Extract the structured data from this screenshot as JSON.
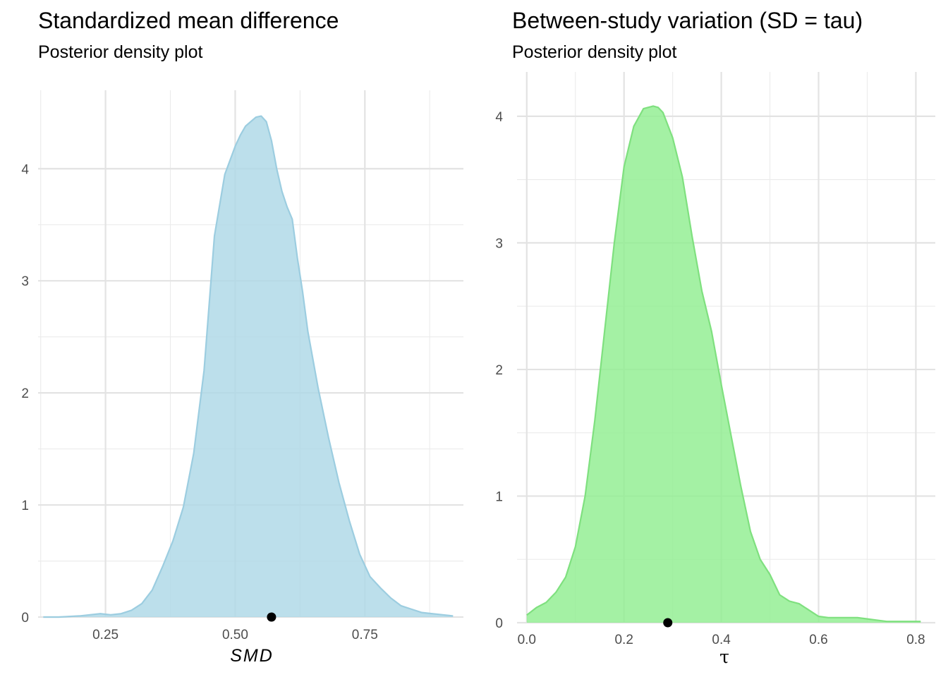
{
  "chart_data": [
    {
      "type": "area",
      "title": "Standardized mean difference",
      "subtitle": "Posterior density plot",
      "xlabel": "SMD",
      "ylabel": "",
      "xlim": [
        0.12,
        0.94
      ],
      "ylim": [
        0,
        4.7
      ],
      "x_ticks": [
        0.25,
        0.5,
        0.75
      ],
      "x_tick_labels": [
        "0.25",
        "0.50",
        "0.75"
      ],
      "x_minor": [
        0.125,
        0.375,
        0.625,
        0.875
      ],
      "y_ticks": [
        0,
        1,
        2,
        3,
        4
      ],
      "y_minor": [
        0.5,
        1.5,
        2.5,
        3.5
      ],
      "fill_color": "#ADD8E6",
      "line_color": "#9CCDE0",
      "grid": true,
      "point": {
        "x": 0.57,
        "y": 0
      },
      "x": [
        0.13,
        0.16,
        0.2,
        0.22,
        0.24,
        0.26,
        0.28,
        0.3,
        0.32,
        0.34,
        0.36,
        0.38,
        0.4,
        0.42,
        0.44,
        0.45,
        0.46,
        0.48,
        0.5,
        0.51,
        0.52,
        0.53,
        0.54,
        0.55,
        0.56,
        0.57,
        0.58,
        0.59,
        0.6,
        0.61,
        0.62,
        0.63,
        0.64,
        0.66,
        0.68,
        0.7,
        0.72,
        0.74,
        0.76,
        0.78,
        0.8,
        0.82,
        0.84,
        0.86,
        0.88,
        0.9,
        0.92
      ],
      "y": [
        0,
        0,
        0.01,
        0.02,
        0.03,
        0.02,
        0.03,
        0.06,
        0.12,
        0.24,
        0.45,
        0.68,
        0.98,
        1.46,
        2.2,
        2.8,
        3.4,
        3.95,
        4.2,
        4.3,
        4.38,
        4.42,
        4.46,
        4.47,
        4.42,
        4.25,
        4.0,
        3.8,
        3.66,
        3.55,
        3.2,
        2.9,
        2.55,
        2.04,
        1.6,
        1.2,
        0.86,
        0.56,
        0.36,
        0.26,
        0.17,
        0.1,
        0.07,
        0.04,
        0.03,
        0.02,
        0.01
      ]
    },
    {
      "type": "area",
      "title": "Between-study variation (SD = tau)",
      "subtitle": "Posterior density plot",
      "xlabel": "τ",
      "ylabel": "",
      "xlim": [
        -0.02,
        0.84
      ],
      "ylim": [
        0,
        4.35
      ],
      "x_ticks": [
        0,
        0.2,
        0.4,
        0.6,
        0.8
      ],
      "x_tick_labels": [
        "0.0",
        "0.2",
        "0.4",
        "0.6",
        "0.8"
      ],
      "x_minor": [
        0.1,
        0.3,
        0.5,
        0.7
      ],
      "y_ticks": [
        0,
        1,
        2,
        3,
        4
      ],
      "y_minor": [
        0.5,
        1.5,
        2.5,
        3.5
      ],
      "fill_color": "#90EE90",
      "line_color": "#7FE07F",
      "grid": true,
      "point": {
        "x": 0.29,
        "y": 0
      },
      "x": [
        0,
        0.02,
        0.04,
        0.06,
        0.08,
        0.1,
        0.12,
        0.14,
        0.16,
        0.18,
        0.2,
        0.22,
        0.24,
        0.26,
        0.27,
        0.28,
        0.3,
        0.32,
        0.34,
        0.36,
        0.38,
        0.4,
        0.42,
        0.44,
        0.46,
        0.48,
        0.5,
        0.52,
        0.54,
        0.56,
        0.58,
        0.6,
        0.62,
        0.64,
        0.66,
        0.68,
        0.7,
        0.72,
        0.74,
        0.76,
        0.78,
        0.8,
        0.81
      ],
      "y": [
        0.06,
        0.12,
        0.16,
        0.24,
        0.36,
        0.6,
        1.0,
        1.6,
        2.3,
        3.0,
        3.6,
        3.92,
        4.06,
        4.08,
        4.07,
        4.03,
        3.83,
        3.52,
        3.05,
        2.62,
        2.3,
        1.88,
        1.48,
        1.08,
        0.72,
        0.5,
        0.38,
        0.22,
        0.17,
        0.15,
        0.1,
        0.05,
        0.04,
        0.04,
        0.04,
        0.04,
        0.03,
        0.02,
        0.01,
        0.01,
        0.01,
        0.01,
        0.01
      ]
    }
  ]
}
